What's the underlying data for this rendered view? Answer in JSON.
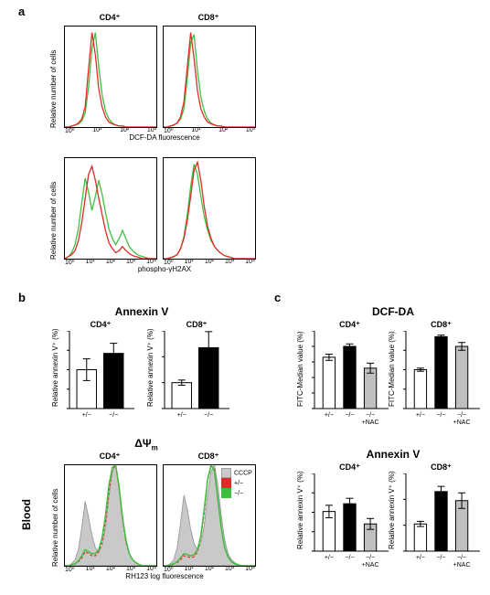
{
  "colors": {
    "red": "#e12b27",
    "green": "#3fbf3f",
    "grey_fill": "#c9c9c9",
    "grey_line": "#9e9e9e",
    "black": "#000000",
    "white": "#ffffff",
    "bar_black": "#000000",
    "bar_white": "#ffffff",
    "bar_grey": "#bfbfbf"
  },
  "labels": {
    "panel_a": "a",
    "panel_b": "b",
    "panel_c": "c",
    "dcf_axis": "DCF-DA fluorescence",
    "h2ax_axis": "phospho-γH2AX",
    "rh123_axis": "RH123 log fluorescence",
    "relnum": "Relative number of cells",
    "rel_annexin": "Relative annexin V⁺ (%)",
    "fitc_median": "FITC-Median value (%)",
    "blood": "Blood",
    "annexinV": "Annexin V",
    "deltaPsi": "ΔΨ",
    "deltaPsiSub": "m",
    "dcfda": "DCF-DA",
    "cd4": "CD4⁺",
    "cd8": "CD8⁺",
    "legend_het": "+/−",
    "legend_ko": "−/−",
    "legend_cccp": "CCCP",
    "xtick_het": "+/−",
    "xtick_ko": "−/−",
    "xtick_nac": "−/−\n+NAC"
  },
  "panel_a": {
    "top_row": {
      "y_top": 100,
      "ytick_count": 5,
      "x_ticks": [
        "10⁰",
        "10¹",
        "10²",
        "10³"
      ],
      "cd4": {
        "red": [
          0,
          0,
          1,
          2,
          4,
          8,
          20,
          58,
          94,
          72,
          38,
          20,
          10,
          5,
          3,
          2,
          1,
          1,
          0,
          0,
          0,
          0,
          0,
          0,
          0,
          0,
          0,
          0
        ],
        "green": [
          0,
          0,
          1,
          2,
          3,
          6,
          14,
          40,
          78,
          94,
          60,
          32,
          16,
          8,
          4,
          2,
          1,
          1,
          0,
          0,
          0,
          0,
          0,
          0,
          0,
          0,
          0,
          0
        ]
      },
      "cd8": {
        "red": [
          0,
          0,
          1,
          2,
          4,
          10,
          25,
          60,
          94,
          68,
          36,
          18,
          10,
          5,
          3,
          2,
          1,
          1,
          0,
          0,
          0,
          0,
          0,
          0,
          0,
          0,
          0,
          0
        ],
        "green": [
          0,
          0,
          1,
          2,
          4,
          8,
          18,
          48,
          84,
          92,
          56,
          30,
          16,
          8,
          4,
          2,
          1,
          1,
          0,
          0,
          0,
          0,
          0,
          0,
          0,
          0,
          0,
          0
        ]
      }
    },
    "bottom_row": {
      "y_top": 100,
      "ytick_count": 5,
      "x_ticks": [
        "10⁰",
        "10¹",
        "10²",
        "10³",
        "10⁴"
      ],
      "cd4": {
        "red": [
          0,
          2,
          4,
          8,
          18,
          36,
          60,
          84,
          92,
          78,
          60,
          44,
          28,
          16,
          10,
          6,
          8,
          12,
          8,
          5,
          3,
          2,
          1,
          0,
          0,
          0,
          0,
          0
        ],
        "green": [
          0,
          2,
          6,
          14,
          30,
          56,
          80,
          66,
          48,
          62,
          78,
          64,
          46,
          30,
          20,
          14,
          20,
          28,
          20,
          12,
          8,
          5,
          3,
          2,
          1,
          0,
          0,
          0
        ]
      },
      "cd8": {
        "red": [
          0,
          0,
          1,
          2,
          4,
          10,
          20,
          38,
          62,
          88,
          96,
          78,
          52,
          32,
          20,
          12,
          8,
          5,
          3,
          2,
          1,
          0,
          0,
          0,
          0,
          0,
          0,
          0
        ],
        "green": [
          0,
          0,
          1,
          2,
          4,
          10,
          22,
          44,
          72,
          94,
          84,
          62,
          42,
          28,
          18,
          12,
          8,
          5,
          3,
          2,
          1,
          0,
          0,
          0,
          0,
          0,
          0,
          0
        ]
      }
    }
  },
  "panel_b": {
    "annexin": {
      "cd4": {
        "ylim": [
          0,
          200
        ],
        "ytick_step": 50,
        "bars": [
          {
            "val": 100,
            "err": 28,
            "fill": "white"
          },
          {
            "val": 142,
            "err": 26,
            "fill": "black"
          }
        ],
        "xticks": [
          "+/−",
          "−/−"
        ]
      },
      "cd8": {
        "ylim": [
          0,
          300
        ],
        "ytick_step": 100,
        "bars": [
          {
            "val": 100,
            "err": 10,
            "fill": "white"
          },
          {
            "val": 235,
            "err": 62,
            "fill": "black"
          }
        ],
        "xticks": [
          "+/−",
          "−/−"
        ]
      }
    },
    "psi": {
      "y_top": 100,
      "ytick_count": 5,
      "x_ticks": [
        "10⁰",
        "10¹",
        "10²",
        "10³",
        "10⁴"
      ],
      "cd4": {
        "cccp": [
          0,
          0,
          2,
          6,
          16,
          38,
          64,
          48,
          30,
          18,
          14,
          20,
          38,
          68,
          94,
          100,
          80,
          50,
          26,
          12,
          6,
          3,
          1,
          0,
          0,
          0,
          0,
          0
        ],
        "het": [
          0,
          0,
          1,
          2,
          4,
          8,
          14,
          12,
          10,
          10,
          14,
          24,
          44,
          74,
          96,
          100,
          76,
          46,
          24,
          12,
          6,
          3,
          1,
          0,
          0,
          0,
          0,
          0
        ],
        "ko": [
          0,
          0,
          1,
          2,
          5,
          10,
          16,
          14,
          12,
          12,
          16,
          28,
          50,
          80,
          98,
          100,
          78,
          48,
          26,
          12,
          6,
          3,
          1,
          0,
          0,
          0,
          0,
          0
        ]
      },
      "cd8": {
        "cccp": [
          0,
          0,
          2,
          6,
          18,
          42,
          70,
          56,
          36,
          22,
          16,
          22,
          40,
          70,
          94,
          100,
          80,
          50,
          26,
          12,
          6,
          3,
          1,
          0,
          0,
          0,
          0,
          0
        ],
        "het": [
          0,
          0,
          1,
          2,
          3,
          6,
          10,
          9,
          8,
          9,
          14,
          28,
          52,
          84,
          100,
          96,
          68,
          38,
          18,
          9,
          4,
          2,
          1,
          0,
          0,
          0,
          0,
          0
        ],
        "ko": [
          0,
          0,
          1,
          2,
          4,
          8,
          12,
          11,
          10,
          11,
          16,
          30,
          56,
          86,
          100,
          94,
          66,
          38,
          18,
          9,
          4,
          2,
          1,
          0,
          0,
          0,
          0,
          0
        ]
      }
    }
  },
  "panel_c": {
    "dcfda": {
      "cd4": {
        "ylim": [
          0,
          250
        ],
        "ytick_step": 50,
        "bars": [
          {
            "val": 165,
            "err": 10,
            "fill": "white"
          },
          {
            "val": 200,
            "err": 8,
            "fill": "black"
          },
          {
            "val": 130,
            "err": 16,
            "fill": "grey"
          }
        ],
        "xticks": [
          "+/−",
          "−/−",
          "−/−\n+NAC"
        ]
      },
      "cd8": {
        "ylim": [
          0,
          400
        ],
        "ytick_step": 100,
        "bars": [
          {
            "val": 200,
            "err": 8,
            "fill": "white"
          },
          {
            "val": 370,
            "err": 8,
            "fill": "black"
          },
          {
            "val": 320,
            "err": 20,
            "fill": "grey"
          }
        ],
        "xticks": [
          "+/−",
          "−/−",
          "−/−\n+NAC"
        ]
      }
    },
    "annexin": {
      "cd4": {
        "ylim": [
          0,
          200
        ],
        "ytick_step": 50,
        "bars": [
          {
            "val": 102,
            "err": 16,
            "fill": "white"
          },
          {
            "val": 122,
            "err": 14,
            "fill": "black"
          },
          {
            "val": 70,
            "err": 14,
            "fill": "grey"
          }
        ],
        "xticks": [
          "+/−",
          "−/−",
          "−/−\n+NAC"
        ]
      },
      "cd8": {
        "ylim": [
          0,
          300
        ],
        "ytick_step": 100,
        "bars": [
          {
            "val": 105,
            "err": 10,
            "fill": "white"
          },
          {
            "val": 230,
            "err": 20,
            "fill": "black"
          },
          {
            "val": 195,
            "err": 30,
            "fill": "grey"
          }
        ],
        "xticks": [
          "+/−",
          "−/−",
          "−/−\n+NAC"
        ]
      }
    }
  }
}
